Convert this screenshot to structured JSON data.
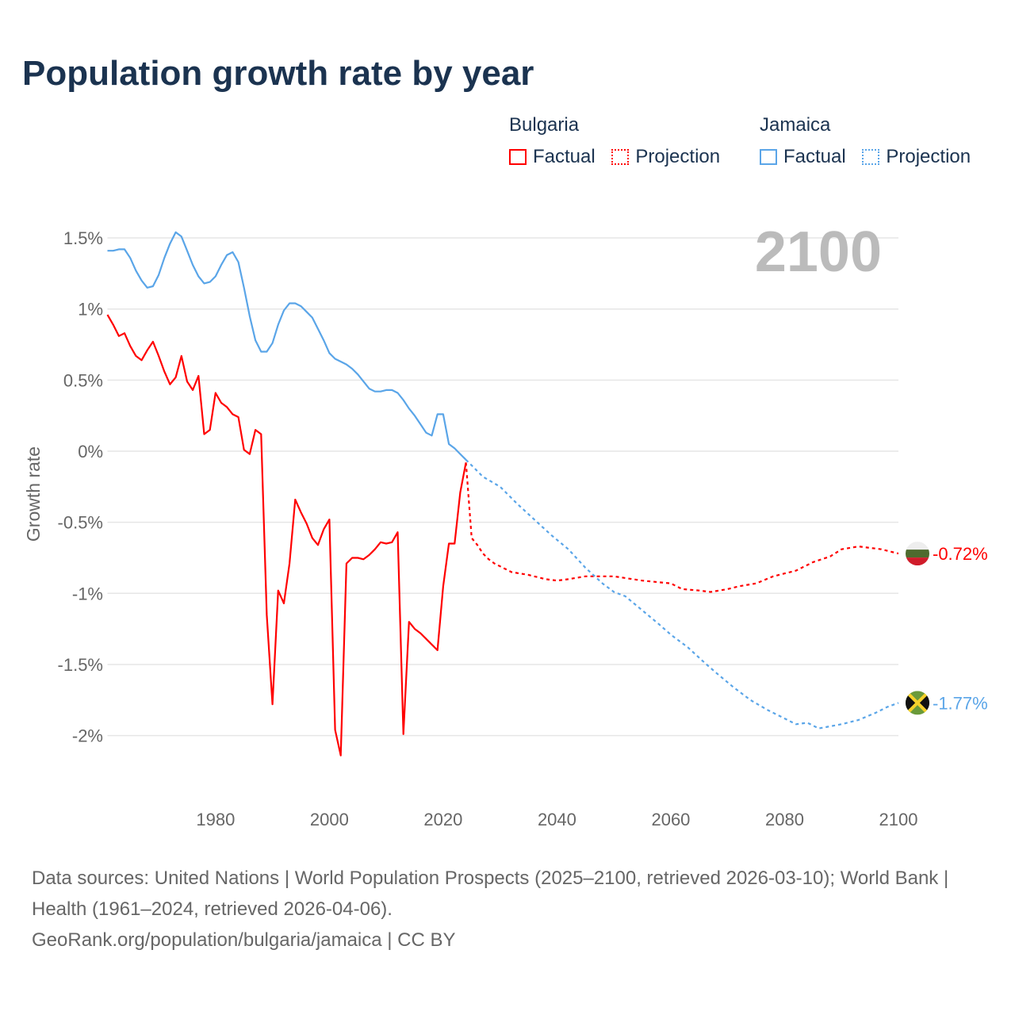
{
  "title": "Population growth rate by year",
  "legend": {
    "groups": [
      {
        "name": "Bulgaria",
        "factual": "Factual",
        "projection": "Projection",
        "color": "#ff0000"
      },
      {
        "name": "Jamaica",
        "factual": "Factual",
        "projection": "Projection",
        "color": "#5aa5e8"
      }
    ]
  },
  "year_watermark": "2100",
  "footer": {
    "sources": "Data sources: United Nations | World Population Prospects (2025–2100, retrieved 2026-03-10); World Bank | Health (1961–2024, retrieved 2026-04-06).",
    "url": "GeoRank.org/population/bulgaria/jamaica | CC BY"
  },
  "chart_data": {
    "type": "line",
    "title": "Population growth rate by year",
    "xlabel": "",
    "ylabel": "Growth rate",
    "xlim": [
      1961,
      2100
    ],
    "ylim": [
      -2.4,
      1.7
    ],
    "x_ticks": [
      1980,
      2000,
      2020,
      2040,
      2060,
      2080,
      2100
    ],
    "x_tick_labels": [
      "1980",
      "2000",
      "2020",
      "2040",
      "2060",
      "2080",
      "2100"
    ],
    "y_ticks": [
      1.5,
      1,
      0.5,
      0,
      -0.5,
      -1,
      -1.5,
      -2
    ],
    "y_tick_labels": [
      "1.5%",
      "1%",
      "0.5%",
      "0%",
      "-0.5%",
      "-1%",
      "-1.5%",
      "-2%"
    ],
    "grid": true,
    "series": [
      {
        "name": "Bulgaria",
        "kind": "factual",
        "color": "#ff0000",
        "x": [
          1961,
          1962,
          1963,
          1964,
          1965,
          1966,
          1967,
          1968,
          1969,
          1970,
          1971,
          1972,
          1973,
          1974,
          1975,
          1976,
          1977,
          1978,
          1979,
          1980,
          1981,
          1982,
          1983,
          1984,
          1985,
          1986,
          1987,
          1988,
          1989,
          1990,
          1991,
          1992,
          1993,
          1994,
          1995,
          1996,
          1997,
          1998,
          1999,
          2000,
          2001,
          2002,
          2003,
          2004,
          2005,
          2006,
          2007,
          2008,
          2009,
          2010,
          2011,
          2012,
          2013,
          2014,
          2015,
          2016,
          2017,
          2018,
          2019,
          2020,
          2021,
          2022,
          2023,
          2024
        ],
        "y": [
          0.96,
          0.89,
          0.81,
          0.83,
          0.74,
          0.67,
          0.64,
          0.71,
          0.77,
          0.67,
          0.56,
          0.47,
          0.52,
          0.67,
          0.49,
          0.43,
          0.53,
          0.12,
          0.15,
          0.41,
          0.34,
          0.31,
          0.26,
          0.24,
          0.01,
          -0.02,
          0.15,
          0.12,
          -1.15,
          -1.78,
          -0.98,
          -1.07,
          -0.79,
          -0.34,
          -0.43,
          -0.51,
          -0.61,
          -0.66,
          -0.55,
          -0.48,
          -1.96,
          -2.14,
          -0.79,
          -0.75,
          -0.75,
          -0.76,
          -0.73,
          -0.69,
          -0.64,
          -0.65,
          -0.64,
          -0.57,
          -1.99,
          -1.2,
          -1.25,
          -1.28,
          -1.32,
          -1.36,
          -1.4,
          -0.95,
          -0.65,
          -0.65,
          -0.29,
          -0.08
        ]
      },
      {
        "name": "Bulgaria",
        "kind": "projection",
        "color": "#ff0000",
        "x": [
          2024,
          2025,
          2026,
          2027,
          2028,
          2029,
          2030,
          2032,
          2035,
          2038,
          2040,
          2042,
          2045,
          2050,
          2055,
          2060,
          2062,
          2065,
          2067,
          2070,
          2072,
          2075,
          2078,
          2082,
          2085,
          2088,
          2090,
          2093,
          2097,
          2100
        ],
        "y": [
          -0.08,
          -0.61,
          -0.66,
          -0.72,
          -0.76,
          -0.79,
          -0.81,
          -0.85,
          -0.87,
          -0.9,
          -0.91,
          -0.9,
          -0.88,
          -0.88,
          -0.91,
          -0.93,
          -0.97,
          -0.98,
          -0.99,
          -0.97,
          -0.95,
          -0.93,
          -0.88,
          -0.84,
          -0.78,
          -0.74,
          -0.69,
          -0.67,
          -0.69,
          -0.72
        ],
        "end_label": "-0.72%"
      },
      {
        "name": "Jamaica",
        "kind": "factual",
        "color": "#5aa5e8",
        "x": [
          1961,
          1962,
          1963,
          1964,
          1965,
          1966,
          1967,
          1968,
          1969,
          1970,
          1971,
          1972,
          1973,
          1974,
          1975,
          1976,
          1977,
          1978,
          1979,
          1980,
          1981,
          1982,
          1983,
          1984,
          1985,
          1986,
          1987,
          1988,
          1989,
          1990,
          1991,
          1992,
          1993,
          1994,
          1995,
          1996,
          1997,
          1998,
          1999,
          2000,
          2001,
          2002,
          2003,
          2004,
          2005,
          2006,
          2007,
          2008,
          2009,
          2010,
          2011,
          2012,
          2013,
          2014,
          2015,
          2016,
          2017,
          2018,
          2019,
          2020,
          2021,
          2022,
          2023,
          2024
        ],
        "y": [
          1.41,
          1.41,
          1.42,
          1.42,
          1.36,
          1.27,
          1.2,
          1.15,
          1.16,
          1.24,
          1.36,
          1.46,
          1.54,
          1.51,
          1.41,
          1.31,
          1.23,
          1.18,
          1.19,
          1.23,
          1.31,
          1.38,
          1.4,
          1.33,
          1.15,
          0.95,
          0.78,
          0.7,
          0.7,
          0.76,
          0.89,
          0.99,
          1.04,
          1.04,
          1.02,
          0.98,
          0.94,
          0.86,
          0.78,
          0.69,
          0.65,
          0.63,
          0.61,
          0.58,
          0.54,
          0.49,
          0.44,
          0.42,
          0.42,
          0.43,
          0.43,
          0.41,
          0.36,
          0.3,
          0.25,
          0.19,
          0.13,
          0.11,
          0.26,
          0.26,
          0.05,
          0.02,
          -0.02,
          -0.06
        ]
      },
      {
        "name": "Jamaica",
        "kind": "projection",
        "color": "#5aa5e8",
        "x": [
          2024,
          2025,
          2027,
          2030,
          2033,
          2036,
          2039,
          2042,
          2045,
          2048,
          2050,
          2052,
          2055,
          2058,
          2060,
          2063,
          2066,
          2068,
          2071,
          2074,
          2077,
          2080,
          2082,
          2084,
          2086,
          2090,
          2093,
          2096,
          2098,
          2100
        ],
        "y": [
          -0.06,
          -0.1,
          -0.18,
          -0.25,
          -0.37,
          -0.48,
          -0.59,
          -0.69,
          -0.82,
          -0.93,
          -0.99,
          -1.02,
          -1.12,
          -1.22,
          -1.29,
          -1.38,
          -1.49,
          -1.56,
          -1.66,
          -1.75,
          -1.82,
          -1.88,
          -1.92,
          -1.91,
          -1.95,
          -1.92,
          -1.89,
          -1.84,
          -1.8,
          -1.77
        ],
        "end_label": "-1.77%"
      }
    ]
  }
}
